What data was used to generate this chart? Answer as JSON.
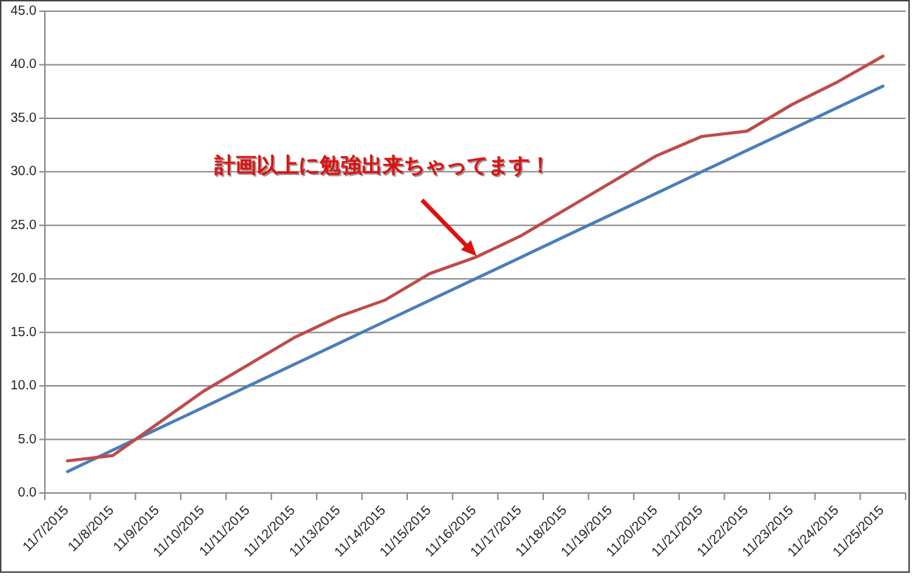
{
  "chart_data": {
    "type": "line",
    "categories": [
      "11/7/2015",
      "11/8/2015",
      "11/9/2015",
      "11/10/2015",
      "11/11/2015",
      "11/12/2015",
      "11/13/2015",
      "11/14/2015",
      "11/15/2015",
      "11/16/2015",
      "11/17/2015",
      "11/18/2015",
      "11/19/2015",
      "11/20/2015",
      "11/21/2015",
      "11/22/2015",
      "11/23/2015",
      "11/24/2015",
      "11/25/2015"
    ],
    "series": [
      {
        "color": "#4a7ebb",
        "values": [
          2,
          4,
          6,
          8,
          10,
          12,
          14,
          16,
          18,
          20,
          22,
          24,
          26,
          28,
          30,
          32,
          34,
          36,
          38
        ]
      },
      {
        "color": "#be4b48",
        "values": [
          3.0,
          3.5,
          6.5,
          9.5,
          12.0,
          14.5,
          16.5,
          18.0,
          20.5,
          22.0,
          24.0,
          26.5,
          29.0,
          31.5,
          33.3,
          33.8,
          36.3,
          38.4,
          40.8
        ]
      }
    ],
    "ylim": [
      0,
      45
    ],
    "yticks": [
      {
        "value": 0,
        "label": "0.0"
      },
      {
        "value": 5,
        "label": "5.0"
      },
      {
        "value": 10,
        "label": "10.0"
      },
      {
        "value": 15,
        "label": "15.0"
      },
      {
        "value": 20,
        "label": "20.0"
      },
      {
        "value": 25,
        "label": "25.0"
      },
      {
        "value": 30,
        "label": "30.0"
      },
      {
        "value": 35,
        "label": "35.0"
      },
      {
        "value": 40,
        "label": "40.0"
      },
      {
        "value": 45,
        "label": "45.0"
      }
    ],
    "grid": "y",
    "marker": "none",
    "line_style": "solid",
    "annotations": [
      {
        "text": "計画以上に勉強出来ちゃってます！",
        "x": "11/16/2015",
        "y": 22.0
      }
    ]
  }
}
